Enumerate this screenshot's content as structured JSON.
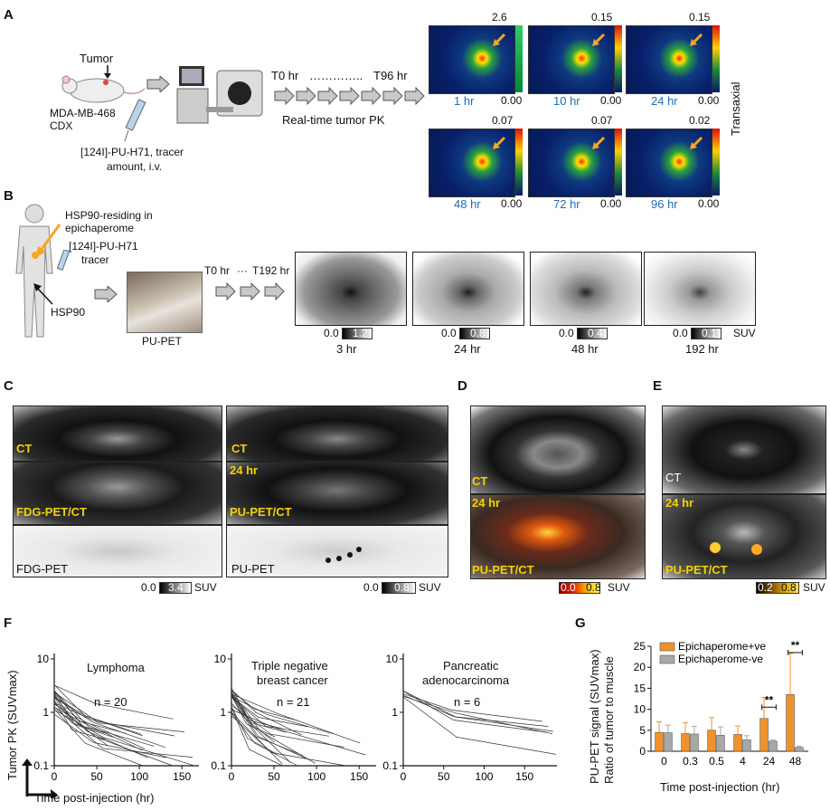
{
  "panels": {
    "A": "A",
    "B": "B",
    "C": "C",
    "D": "D",
    "E": "E",
    "F": "F",
    "G": "G"
  },
  "A": {
    "tumor": "Tumor",
    "model_line1": "MDA-MB-468",
    "model_line2": "CDX",
    "tracer_line1": "[124I]-PU-H71,  tracer",
    "tracer_line2": "amount, i.v.",
    "time_start": "T0 hr",
    "time_dots": "…………..",
    "time_end": "T96 hr",
    "pk_label": "Real-time tumor PK",
    "orientation": "Transaxial",
    "scans": [
      {
        "time": "1 hr",
        "max": "2.6",
        "min": "0.00"
      },
      {
        "time": "10 hr",
        "max": "0.15",
        "min": "0.00"
      },
      {
        "time": "24 hr",
        "max": "0.15",
        "min": "0.00"
      },
      {
        "time": "48 hr",
        "max": "0.07",
        "min": "0.00"
      },
      {
        "time": "72 hr",
        "max": "0.07",
        "min": "0.00"
      },
      {
        "time": "96 hr",
        "max": "0.02",
        "min": "0.00"
      }
    ]
  },
  "B": {
    "epi_line1": "HSP90-residing in",
    "epi_line2": "epichaperome",
    "tracer_line1": "[124I]-PU-H71",
    "tracer_line2": "tracer",
    "hsp90": "HSP90",
    "pupet": "PU-PET",
    "time_start": "T0 hr",
    "time_dots": "···",
    "time_end": "T192 hr",
    "scans": [
      {
        "time": "3 hr",
        "min": "0.0",
        "max": "1.2"
      },
      {
        "time": "24 hr",
        "min": "0.0",
        "max": "0.8"
      },
      {
        "time": "48 hr",
        "min": "0.0",
        "max": "0.4"
      },
      {
        "time": "192 hr",
        "min": "0.0",
        "max": "0.1"
      }
    ],
    "unit": "SUV"
  },
  "C": {
    "left": {
      "ct": "CT",
      "fdg_petct": "FDG-PET/CT",
      "fdg_pet": "FDG-PET",
      "min": "0.0",
      "max": "3.4",
      "unit": "SUV"
    },
    "right": {
      "ct": "CT",
      "time": "24 hr",
      "pu_petct": "PU-PET/CT",
      "pu_pet": "PU-PET",
      "min": "0.0",
      "max": "0.8",
      "unit": "SUV"
    }
  },
  "D": {
    "ct": "CT",
    "time": "24 hr",
    "pu_petct": "PU-PET/CT",
    "min": "0.0",
    "max": "0.8",
    "unit": "SUV"
  },
  "E": {
    "ct": "CT",
    "time": "24 hr",
    "pu_petct": "PU-PET/CT",
    "min": "0.2",
    "max": "0.8",
    "unit": "SUV"
  },
  "F": {
    "ylabel": "Tumor PK (SUVmax)",
    "xlabel": "Time post-injection (hr)",
    "yticks": [
      "10",
      "1",
      "0.1"
    ],
    "plots": [
      {
        "title": "Lymphoma",
        "n": "n = 20",
        "xticks": [
          "0",
          "50",
          "100",
          "150"
        ]
      },
      {
        "title_line1": "Triple negative",
        "title_line2": "breast cancer",
        "n": "n = 21",
        "xticks": [
          "0",
          "50",
          "100",
          "150"
        ]
      },
      {
        "title_line1": "Pancreatic",
        "title_line2": "adenocarcinoma",
        "n": "n = 6",
        "xticks": [
          "0",
          "50",
          "100",
          "150"
        ]
      }
    ]
  },
  "chart_data": {
    "type": "bar",
    "title": "",
    "xlabel": "Time post-injection (hr)",
    "ylabel_line1": "PU-PET signal (SUVmax)",
    "ylabel_line2": "Ratio of tumor to muscle",
    "categories": [
      "0",
      "0.3",
      "0.5",
      "4",
      "24",
      "48"
    ],
    "ylim": [
      0,
      25
    ],
    "yticks": [
      "0",
      "5",
      "10",
      "15",
      "20",
      "25"
    ],
    "series": [
      {
        "name": "Epichaperome+ve",
        "color": "#f0922b",
        "values": [
          4.5,
          4.2,
          5.0,
          4.0,
          7.8,
          13.5
        ],
        "err": [
          2.5,
          2.6,
          3.0,
          2.0,
          5.0,
          9.8
        ]
      },
      {
        "name": "Epichaperome-ve",
        "color": "#a8a8a8",
        "values": [
          4.4,
          4.1,
          3.8,
          2.7,
          2.4,
          0.9
        ],
        "err": [
          1.8,
          1.8,
          2.0,
          1.0,
          0.3,
          0.3
        ]
      }
    ],
    "significance": [
      "**",
      "**"
    ],
    "legend": "top-left"
  }
}
